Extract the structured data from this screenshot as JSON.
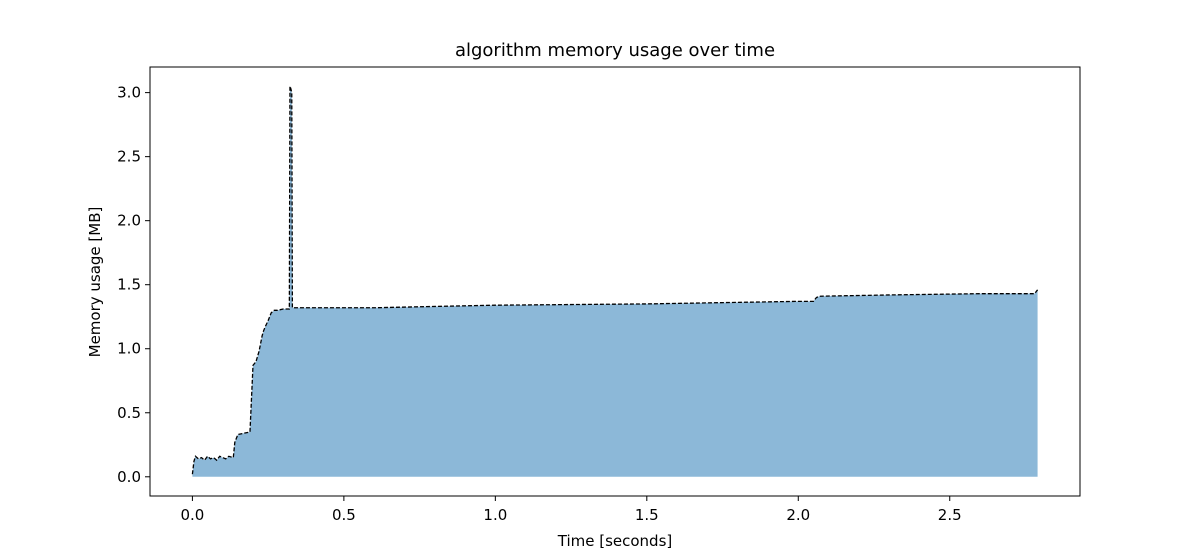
{
  "chart_data": {
    "type": "area",
    "title": "algorithm memory usage over time",
    "xlabel": "Time [seconds]",
    "ylabel": "Memory usage [MB]",
    "xlim": [
      -0.14,
      2.93
    ],
    "ylim": [
      -0.15,
      3.2
    ],
    "xticks": [
      0.0,
      0.5,
      1.0,
      1.5,
      2.0,
      2.5
    ],
    "xtick_labels": [
      "0.0",
      "0.5",
      "1.0",
      "1.5",
      "2.0",
      "2.5"
    ],
    "yticks": [
      0.0,
      0.5,
      1.0,
      1.5,
      2.0,
      2.5,
      3.0
    ],
    "ytick_labels": [
      "0.0",
      "0.5",
      "1.0",
      "1.5",
      "2.0",
      "2.5",
      "3.0"
    ],
    "grid": false,
    "legend": "none",
    "fill_color": "#8cb8d8",
    "line_color": "#000000",
    "line_style": "dashed",
    "series": [
      {
        "x": [
          0.0,
          0.005,
          0.01,
          0.02,
          0.03,
          0.04,
          0.05,
          0.06,
          0.07,
          0.08,
          0.09,
          0.1,
          0.11,
          0.12,
          0.135,
          0.14,
          0.15,
          0.17,
          0.19,
          0.2,
          0.21,
          0.22,
          0.23,
          0.235,
          0.24,
          0.25,
          0.26,
          0.27,
          0.28,
          0.3,
          0.32,
          0.322,
          0.325,
          0.328,
          0.33,
          0.4,
          0.6,
          1.0,
          1.5,
          2.0,
          2.05,
          2.06,
          2.07,
          2.3,
          2.6,
          2.78,
          2.79
        ],
        "y": [
          0.02,
          0.12,
          0.16,
          0.14,
          0.15,
          0.13,
          0.16,
          0.14,
          0.15,
          0.13,
          0.16,
          0.15,
          0.14,
          0.16,
          0.15,
          0.27,
          0.33,
          0.34,
          0.35,
          0.87,
          0.9,
          0.98,
          1.1,
          1.14,
          1.17,
          1.22,
          1.28,
          1.3,
          1.3,
          1.31,
          1.31,
          3.05,
          3.03,
          3.0,
          1.32,
          1.32,
          1.32,
          1.34,
          1.35,
          1.37,
          1.37,
          1.4,
          1.41,
          1.42,
          1.43,
          1.43,
          1.46
        ]
      }
    ]
  }
}
